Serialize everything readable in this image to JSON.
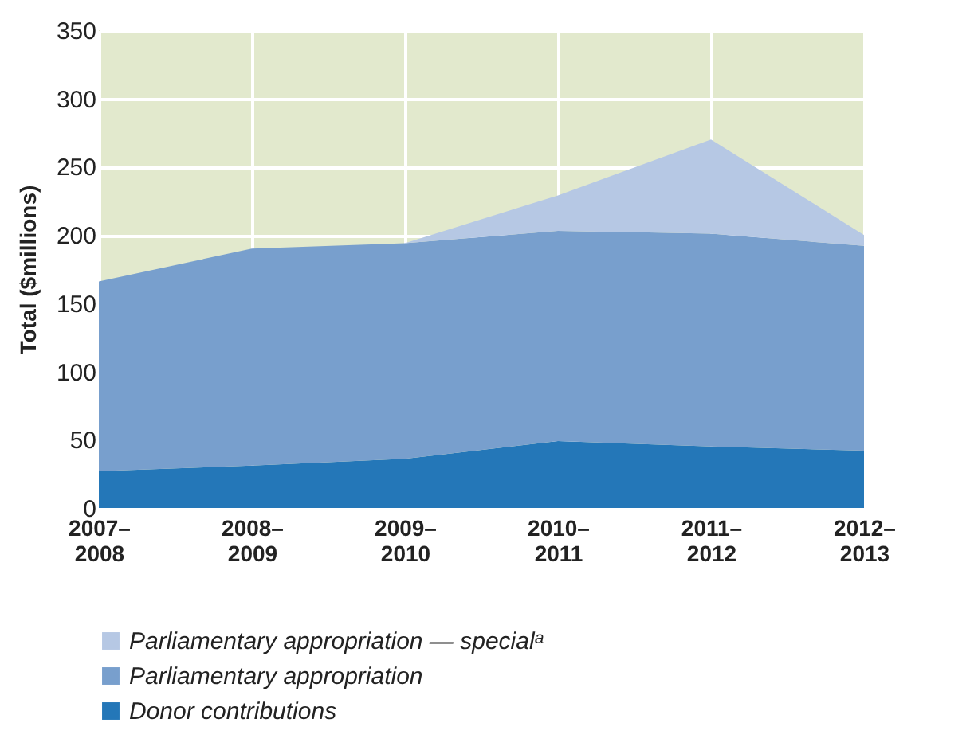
{
  "chart_data": {
    "type": "area",
    "stacked": true,
    "ylabel": "Total ($millions)",
    "categories": [
      "2007–2008",
      "2008–2009",
      "2009–2010",
      "2010–2011",
      "2011–2012",
      "2012–2013"
    ],
    "series": [
      {
        "name": "Donor contributions",
        "color": "#2477b8",
        "values": [
          27,
          31,
          36,
          49,
          45,
          42
        ]
      },
      {
        "name": "Parliamentary appropriation",
        "color": "#789fcd",
        "values": [
          139,
          159,
          158,
          154,
          156,
          150
        ]
      },
      {
        "name": "Parliamentary appropriation — specialᵃ",
        "color": "#b6c8e4",
        "values": [
          0,
          0,
          0,
          26,
          69,
          8
        ]
      }
    ],
    "ylim": [
      0,
      350
    ],
    "yticks": [
      0,
      50,
      100,
      150,
      200,
      250,
      300,
      350
    ],
    "grid": true,
    "legend": "bottom"
  }
}
